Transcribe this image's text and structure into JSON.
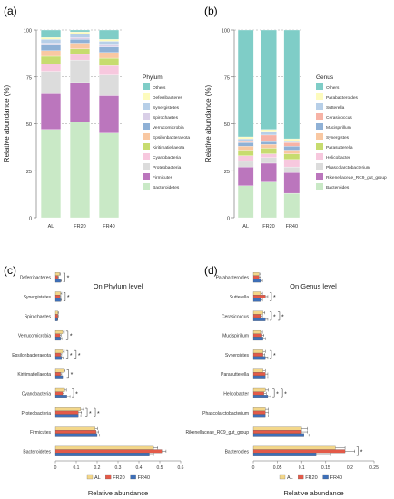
{
  "colors": {
    "Others": "#7fcdc7",
    "Deferribacteres": "#fdfbbd",
    "Synergistetes": "#b7cfe8",
    "Spirochaetes": "#d9cfe7",
    "Verrucomicrobia": "#8fb1d6",
    "Epsilonbacteraeota": "#f9c8a2",
    "Kiritimatiellaeota": "#c7dc6f",
    "Cyanobacteria": "#f7c8de",
    "Proteobacteria": "#dcdcdc",
    "Firmicutes": "#bb76bd",
    "Bacteroidetes": "#c9e9c6",
    "Parabacteroides": "#fdfbbd",
    "Sutterella": "#b7cfe8",
    "Cerasicoccus": "#f7b3a6",
    "Mucispirillum": "#8fb1d6",
    "Synergistes": "#f9c8a2",
    "Parasutterella": "#c7dc6f",
    "Helicobacter": "#f7c8de",
    "Phascolarctobacterium": "#dcdcdc",
    "Rikenellaceae_RC9_gut_group": "#bb76bd",
    "Bacteroides": "#c9e9c6",
    "AL": "#f3d78a",
    "FR20": "#e35a48",
    "FR40": "#3e6fb8"
  },
  "chart_data": [
    {
      "panel": "(a)",
      "type": "bar",
      "stacked": true,
      "categories": [
        "AL",
        "FR20",
        "FR40"
      ],
      "ylabel": "Relative abundance (%)",
      "yticks": [
        0,
        25,
        50,
        75,
        100
      ],
      "ylim": [
        0,
        100
      ],
      "legend_title": "Phylum",
      "legend_position": "right",
      "series": [
        {
          "name": "Bacteroidetes",
          "values": [
            47,
            51,
            45
          ]
        },
        {
          "name": "Firmicutes",
          "values": [
            19,
            21,
            20
          ]
        },
        {
          "name": "Proteobacteria",
          "values": [
            12,
            12,
            11
          ]
        },
        {
          "name": "Cyanobacteria",
          "values": [
            4,
            3,
            5
          ]
        },
        {
          "name": "Kiritimatiellaeota",
          "values": [
            4,
            3,
            4
          ]
        },
        {
          "name": "Epsilonbacteraeota",
          "values": [
            3,
            3,
            3
          ]
        },
        {
          "name": "Verrucomicrobia",
          "values": [
            3,
            2,
            3
          ]
        },
        {
          "name": "Spirochaetes",
          "values": [
            1,
            1,
            1
          ]
        },
        {
          "name": "Synergistetes",
          "values": [
            2,
            2,
            2
          ]
        },
        {
          "name": "Deferribacteres",
          "values": [
            1,
            1,
            1
          ]
        },
        {
          "name": "Others",
          "values": [
            4,
            1,
            5
          ]
        }
      ]
    },
    {
      "panel": "(b)",
      "type": "bar",
      "stacked": true,
      "categories": [
        "AL",
        "FR20",
        "FR40"
      ],
      "ylabel": "Relative abundance (%)",
      "yticks": [
        0,
        25,
        50,
        75,
        100
      ],
      "ylim": [
        0,
        100
      ],
      "legend_title": "Genus",
      "legend_position": "right",
      "series": [
        {
          "name": "Bacteroides",
          "values": [
            17,
            19,
            13
          ]
        },
        {
          "name": "Rikenellaceae_RC9_gut_group",
          "values": [
            10,
            10,
            11
          ]
        },
        {
          "name": "Phascolarctobacterium",
          "values": [
            3,
            3,
            3
          ]
        },
        {
          "name": "Helicobacter",
          "values": [
            3,
            2,
            4
          ]
        },
        {
          "name": "Parasutterella",
          "values": [
            3,
            3,
            3
          ]
        },
        {
          "name": "Synergistes",
          "values": [
            2,
            2,
            2
          ]
        },
        {
          "name": "Mucispirillum",
          "values": [
            2,
            2,
            2
          ]
        },
        {
          "name": "Cerasicoccus",
          "values": [
            1,
            3,
            2
          ]
        },
        {
          "name": "Sutterella",
          "values": [
            1,
            2,
            1
          ]
        },
        {
          "name": "Parabacteroides",
          "values": [
            1,
            1,
            1
          ]
        },
        {
          "name": "Others",
          "values": [
            57,
            53,
            58
          ]
        }
      ]
    },
    {
      "panel": "(c)",
      "type": "bar",
      "orientation": "horizontal",
      "title": "On Phylum level",
      "xlabel": "Relative abundance",
      "xticks": [
        0,
        0.1,
        0.2,
        0.3,
        0.4,
        0.5,
        0.6
      ],
      "xlim": [
        0,
        0.6
      ],
      "categories": [
        "Deferribacteres",
        "Synergistetes",
        "Spirochaetes",
        "Verrucomicrobia",
        "Epsilonbacteraeota",
        "Kiritimatiellaeota",
        "Cyanobacteria",
        "Proteobacteria",
        "Firmicutes",
        "Bacteroidetes"
      ],
      "series": [
        {
          "name": "AL",
          "values": [
            0.02,
            0.025,
            0.012,
            0.035,
            0.035,
            0.04,
            0.045,
            0.12,
            0.19,
            0.47
          ]
        },
        {
          "name": "FR20",
          "values": [
            0.012,
            0.022,
            0.012,
            0.022,
            0.025,
            0.025,
            0.035,
            0.11,
            0.195,
            0.51
          ]
        },
        {
          "name": "FR40",
          "values": [
            0.025,
            0.025,
            0.01,
            0.025,
            0.03,
            0.035,
            0.055,
            0.11,
            0.2,
            0.45
          ]
        }
      ],
      "errors": [
        [
          0.004,
          0.005,
          0.003,
          0.008,
          0.008,
          0.006,
          0.008,
          0.015,
          0.012,
          0.02
        ],
        [
          0.003,
          0.004,
          0.002,
          0.005,
          0.005,
          0.005,
          0.006,
          0.015,
          0.012,
          0.02
        ],
        [
          0.004,
          0.004,
          0.002,
          0.006,
          0.006,
          0.005,
          0.015,
          0.012,
          0.012,
          0.02
        ]
      ],
      "significance": [
        {
          "category": "Deferribacteres",
          "label": "*"
        },
        {
          "category": "Synergistetes",
          "label": "*"
        },
        {
          "category": "Verrucomicrobia",
          "label": "*"
        },
        {
          "category": "Epsilonbacteraeota",
          "label": "*"
        },
        {
          "category": "Epsilonbacteraeota",
          "label": "*"
        },
        {
          "category": "Kiritimatiellaeota",
          "label": "*"
        },
        {
          "category": "Cyanobacteria",
          "label": "*"
        },
        {
          "category": "Proteobacteria",
          "label": "*"
        },
        {
          "category": "Proteobacteria",
          "label": "*"
        }
      ],
      "legend_position": "bottom"
    },
    {
      "panel": "(d)",
      "type": "bar",
      "orientation": "horizontal",
      "title": "On Genus level",
      "xlabel": "Relative abundance",
      "xticks": [
        0,
        0.05,
        0.1,
        0.15,
        0.2,
        0.25
      ],
      "xlim": [
        0,
        0.25
      ],
      "categories": [
        "Parabacteroides",
        "Sutterella",
        "Cerasicoccus",
        "Mucispirillum",
        "Synergistes",
        "Parasutterella",
        "Helicobacter",
        "Phascolarctobacterium",
        "Rikenellaceae_RC9_gut_group",
        "Bacteroides"
      ],
      "series": [
        {
          "name": "AL",
          "values": [
            0.012,
            0.015,
            0.02,
            0.015,
            0.02,
            0.02,
            0.025,
            0.025,
            0.1,
            0.17
          ]
        },
        {
          "name": "FR20",
          "values": [
            0.012,
            0.025,
            0.015,
            0.018,
            0.02,
            0.025,
            0.022,
            0.025,
            0.1,
            0.19
          ]
        },
        {
          "name": "FR40",
          "values": [
            0.015,
            0.015,
            0.025,
            0.02,
            0.025,
            0.025,
            0.03,
            0.025,
            0.105,
            0.13
          ]
        }
      ],
      "errors": [
        [
          0.003,
          0.004,
          0.004,
          0.004,
          0.005,
          0.005,
          0.006,
          0.006,
          0.012,
          0.02
        ],
        [
          0.003,
          0.005,
          0.004,
          0.004,
          0.004,
          0.005,
          0.005,
          0.006,
          0.012,
          0.02
        ],
        [
          0.004,
          0.004,
          0.005,
          0.005,
          0.005,
          0.005,
          0.006,
          0.006,
          0.01,
          0.03
        ]
      ],
      "significance": [
        {
          "category": "Sutterella",
          "label": "*"
        },
        {
          "category": "Cerasicoccus",
          "label": "*"
        },
        {
          "category": "Cerasicoccus",
          "label": "*"
        },
        {
          "category": "Synergistes",
          "label": "*"
        },
        {
          "category": "Helicobacter",
          "label": "*"
        },
        {
          "category": "Helicobacter",
          "label": "*"
        },
        {
          "category": "Bacteroides",
          "label": "*"
        }
      ],
      "legend_position": "bottom"
    }
  ]
}
